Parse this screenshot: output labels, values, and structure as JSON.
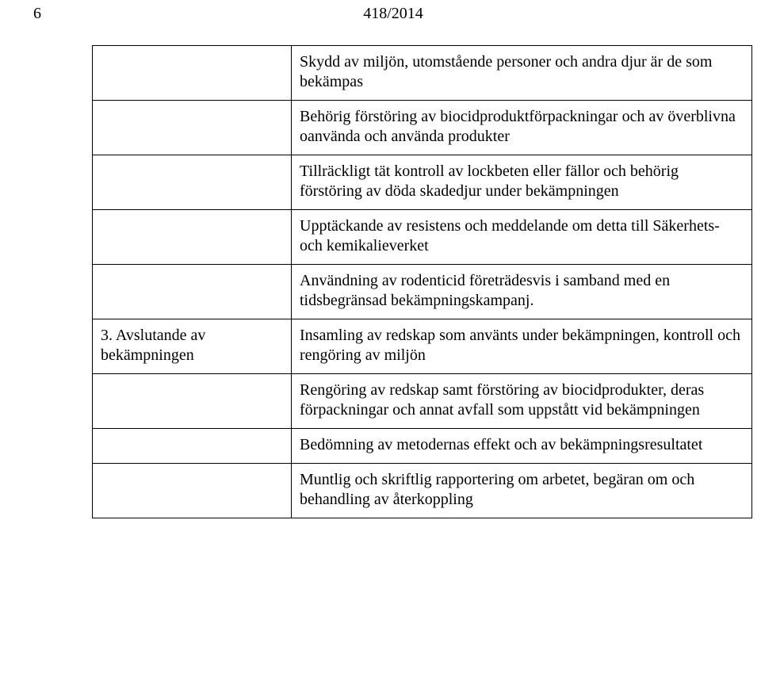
{
  "header": {
    "page_number": "6",
    "doc_number": "418/2014"
  },
  "rows": [
    {
      "left": "",
      "right": "Skydd av miljön, utomstående personer och andra djur är de som bekämpas"
    },
    {
      "left": "",
      "right": "Behörig förstöring av biocidproduktförpackningar och av överblivna oanvända och använda produkter"
    },
    {
      "left": "",
      "right": "Tillräckligt tät kontroll av lockbeten eller fällor och behörig förstöring av döda skadedjur under bekämpningen"
    },
    {
      "left": "",
      "right": "Upptäckande av resistens och meddelande om detta till Säkerhets- och kemikalieverket"
    },
    {
      "left": "",
      "right": "Användning av rodenticid företrädesvis i samband med en tidsbegränsad bekämpningskampanj."
    },
    {
      "left": "3. Avslutande av bekämpningen",
      "right": "Insamling av redskap som använts under bekämpningen, kontroll och rengöring av miljön"
    },
    {
      "left": "",
      "right": "Rengöring av redskap samt förstöring av biocidprodukter, deras förpackningar och annat avfall som uppstått vid bekämpningen"
    },
    {
      "left": "",
      "right": "Bedömning av metodernas effekt och av bekämpningsresultatet"
    },
    {
      "left": "",
      "right": "Muntlig och skriftlig rapportering om arbetet, begäran om och behandling av återkoppling"
    }
  ]
}
